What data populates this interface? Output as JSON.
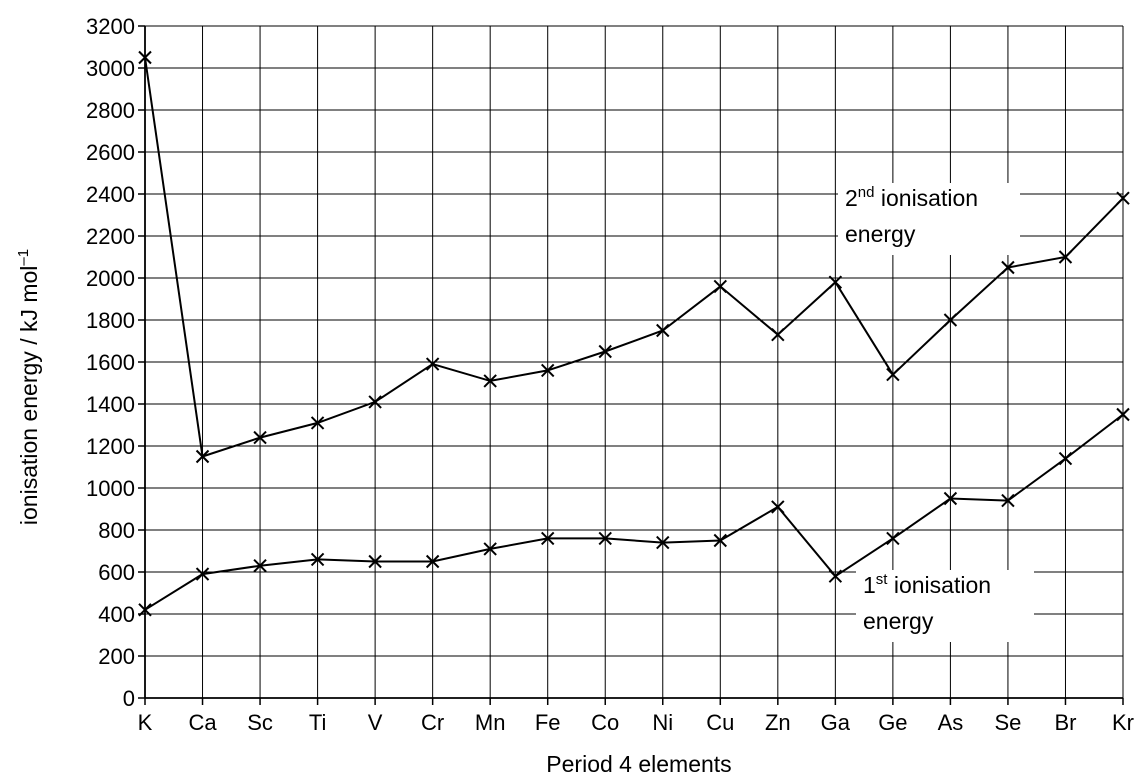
{
  "chart_data": {
    "type": "line",
    "xlabel": "Period 4 elements",
    "ylabel": "ionisation energy / kJ mol",
    "ylabel_sup": "–1",
    "categories": [
      "K",
      "Ca",
      "Sc",
      "Ti",
      "V",
      "Cr",
      "Mn",
      "Fe",
      "Co",
      "Ni",
      "Cu",
      "Zn",
      "Ga",
      "Ge",
      "As",
      "Se",
      "Br",
      "Kr"
    ],
    "ylim": [
      0,
      3200
    ],
    "ytick_step": 200,
    "grid": true,
    "marker": "x",
    "series": [
      {
        "label_pre": "2",
        "label_sup": "nd",
        "label_line1_rest": " ionisation",
        "label_line2": "energy",
        "values": [
          3050,
          1150,
          1240,
          1310,
          1410,
          1590,
          1510,
          1560,
          1650,
          1750,
          1960,
          1730,
          1980,
          1540,
          1800,
          2050,
          2100,
          2380
        ]
      },
      {
        "label_pre": "1",
        "label_sup": "st",
        "label_line1_rest": " ionisation",
        "label_line2": "energy",
        "values": [
          420,
          590,
          630,
          660,
          650,
          650,
          710,
          760,
          760,
          740,
          750,
          910,
          580,
          760,
          950,
          940,
          1140,
          1350
        ]
      }
    ]
  }
}
